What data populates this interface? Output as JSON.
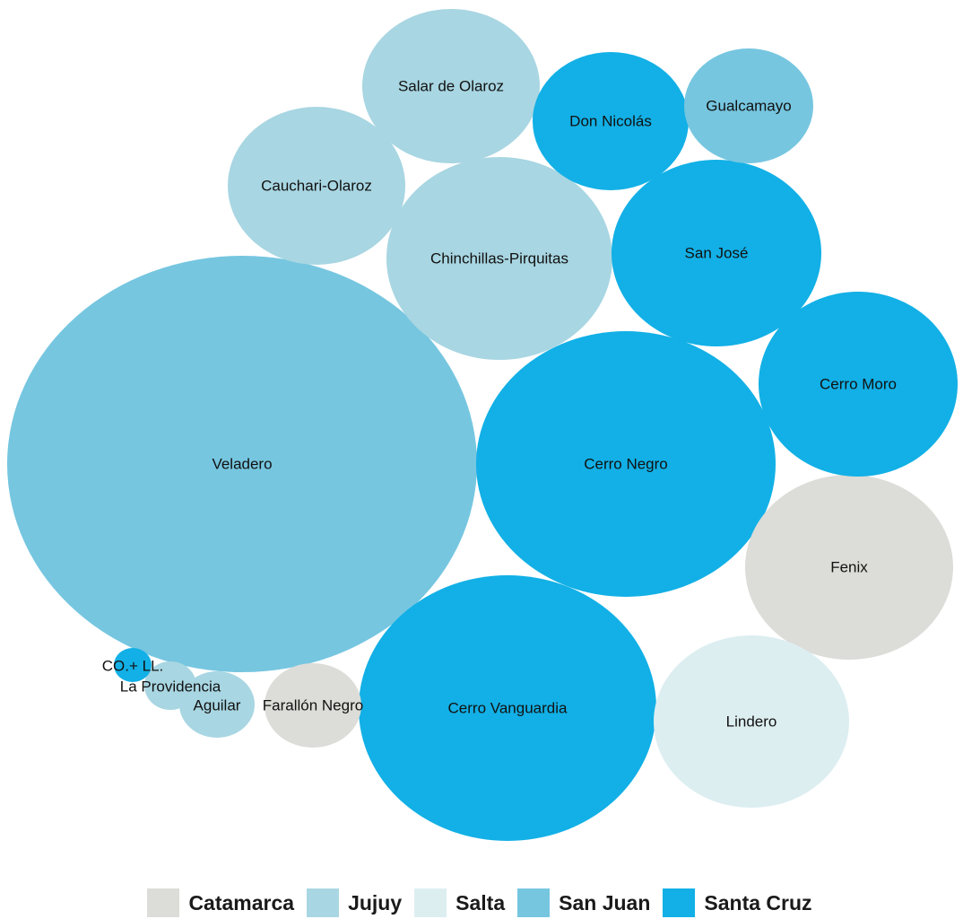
{
  "chart_data": {
    "type": "bubble",
    "title": "",
    "groups": [
      {
        "name": "Catamarca",
        "color": "#dcdcd8"
      },
      {
        "name": "Jujuy",
        "color": "#a8d6e2"
      },
      {
        "name": "Salta",
        "color": "#ddeef1"
      },
      {
        "name": "San Juan",
        "color": "#76c6e0"
      },
      {
        "name": "Santa Cruz",
        "color": "#12b0e6"
      }
    ],
    "bubbles": [
      {
        "label": "Veladero",
        "group": "San Juan"
      },
      {
        "label": "Cerro Negro",
        "group": "Santa Cruz"
      },
      {
        "label": "Cerro Vanguardia",
        "group": "Santa Cruz"
      },
      {
        "label": "Chinchillas-Pirquitas",
        "group": "Jujuy"
      },
      {
        "label": "San José",
        "group": "Santa Cruz"
      },
      {
        "label": "Fenix",
        "group": "Catamarca"
      },
      {
        "label": "Lindero",
        "group": "Salta"
      },
      {
        "label": "Cerro Moro",
        "group": "Santa Cruz"
      },
      {
        "label": "Salar de Olaroz",
        "group": "Jujuy"
      },
      {
        "label": "Cauchari-Olaroz",
        "group": "Jujuy"
      },
      {
        "label": "Don Nicolás",
        "group": "Santa Cruz"
      },
      {
        "label": "Gualcamayo",
        "group": "San Juan"
      },
      {
        "label": "Farallón Negro",
        "group": "Catamarca"
      },
      {
        "label": "Aguilar",
        "group": "Jujuy"
      },
      {
        "label": "La Providencia",
        "group": "Jujuy"
      },
      {
        "label": "CO.+ LL.",
        "group": "Santa Cruz"
      }
    ]
  },
  "legend": {
    "items": [
      "Catamarca",
      "Jujuy",
      "Salta",
      "San Juan",
      "Santa Cruz"
    ]
  }
}
